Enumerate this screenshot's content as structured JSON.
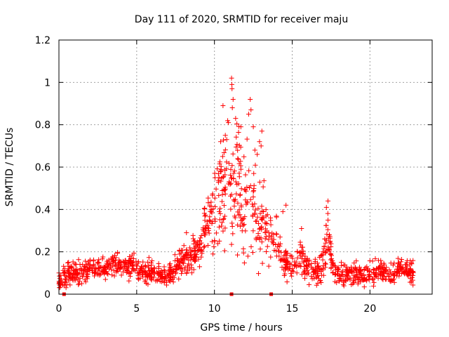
{
  "chart_data": {
    "type": "scatter",
    "title": "Day 111 of 2020, SRMTID for receiver maju",
    "xlabel": "GPS time / hours",
    "ylabel": "SRMTID / TECUs",
    "xlim": [
      0,
      24
    ],
    "ylim": [
      0,
      1.2
    ],
    "xticks": [
      0,
      5,
      10,
      15,
      20
    ],
    "xtick_labels": [
      "0",
      "5",
      "10",
      "15",
      "20"
    ],
    "yticks": [
      0,
      0.2,
      0.4,
      0.6,
      0.8,
      1,
      1.2
    ],
    "ytick_labels": [
      "0",
      "0.2",
      "0.4",
      "0.6",
      "0.8",
      "1",
      "1.2"
    ],
    "grid": true,
    "marker": "+",
    "color": "#ff0000",
    "baseline_markers": {
      "x": [
        0.33,
        11.1,
        13.65
      ],
      "y": 0
    },
    "profile": [
      [
        0.0,
        0.06,
        0.03
      ],
      [
        0.3,
        0.07,
        0.04
      ],
      [
        0.6,
        0.1,
        0.04
      ],
      [
        1.0,
        0.1,
        0.04
      ],
      [
        1.5,
        0.11,
        0.05
      ],
      [
        2.0,
        0.12,
        0.04
      ],
      [
        2.5,
        0.12,
        0.04
      ],
      [
        3.0,
        0.12,
        0.04
      ],
      [
        3.5,
        0.14,
        0.05
      ],
      [
        4.0,
        0.13,
        0.04
      ],
      [
        4.5,
        0.13,
        0.05
      ],
      [
        5.0,
        0.12,
        0.04
      ],
      [
        5.5,
        0.11,
        0.04
      ],
      [
        6.0,
        0.1,
        0.04
      ],
      [
        6.5,
        0.09,
        0.03
      ],
      [
        7.0,
        0.09,
        0.03
      ],
      [
        7.5,
        0.12,
        0.04
      ],
      [
        8.0,
        0.16,
        0.05
      ],
      [
        8.5,
        0.18,
        0.06
      ],
      [
        9.0,
        0.22,
        0.07
      ],
      [
        9.5,
        0.32,
        0.1
      ],
      [
        10.0,
        0.4,
        0.14
      ],
      [
        10.5,
        0.5,
        0.17
      ],
      [
        11.0,
        0.55,
        0.22
      ],
      [
        11.5,
        0.52,
        0.2
      ],
      [
        12.0,
        0.45,
        0.2
      ],
      [
        12.5,
        0.4,
        0.18
      ],
      [
        13.0,
        0.34,
        0.16
      ],
      [
        13.5,
        0.26,
        0.1
      ],
      [
        14.0,
        0.24,
        0.08
      ],
      [
        14.5,
        0.13,
        0.05
      ],
      [
        15.0,
        0.13,
        0.05
      ],
      [
        15.5,
        0.18,
        0.06
      ],
      [
        16.0,
        0.12,
        0.05
      ],
      [
        16.5,
        0.11,
        0.04
      ],
      [
        17.0,
        0.15,
        0.07
      ],
      [
        17.3,
        0.3,
        0.1
      ],
      [
        17.6,
        0.12,
        0.05
      ],
      [
        18.0,
        0.09,
        0.04
      ],
      [
        18.5,
        0.09,
        0.04
      ],
      [
        19.0,
        0.1,
        0.04
      ],
      [
        19.5,
        0.09,
        0.04
      ],
      [
        20.0,
        0.1,
        0.04
      ],
      [
        20.5,
        0.11,
        0.04
      ],
      [
        21.0,
        0.1,
        0.04
      ],
      [
        21.5,
        0.1,
        0.04
      ],
      [
        22.0,
        0.12,
        0.04
      ],
      [
        22.5,
        0.11,
        0.04
      ],
      [
        22.8,
        0.1,
        0.04
      ]
    ],
    "extremes": [
      [
        11.1,
        1.02
      ],
      [
        11.12,
        0.99
      ],
      [
        11.13,
        0.97
      ],
      [
        11.2,
        0.92
      ],
      [
        11.15,
        0.88
      ],
      [
        10.55,
        0.89
      ],
      [
        12.3,
        0.92
      ],
      [
        12.35,
        0.87
      ],
      [
        12.2,
        0.85
      ],
      [
        10.9,
        0.81
      ],
      [
        11.7,
        0.79
      ],
      [
        12.5,
        0.79
      ],
      [
        13.05,
        0.77
      ],
      [
        12.9,
        0.72
      ],
      [
        13.0,
        0.7
      ],
      [
        10.7,
        0.75
      ],
      [
        10.4,
        0.72
      ],
      [
        12.6,
        0.68
      ],
      [
        12.75,
        0.66
      ],
      [
        11.5,
        0.64
      ],
      [
        17.3,
        0.44
      ],
      [
        17.2,
        0.41
      ],
      [
        14.6,
        0.42
      ],
      [
        14.4,
        0.39
      ],
      [
        15.6,
        0.31
      ],
      [
        8.2,
        0.29
      ]
    ],
    "point_count": 1400
  }
}
